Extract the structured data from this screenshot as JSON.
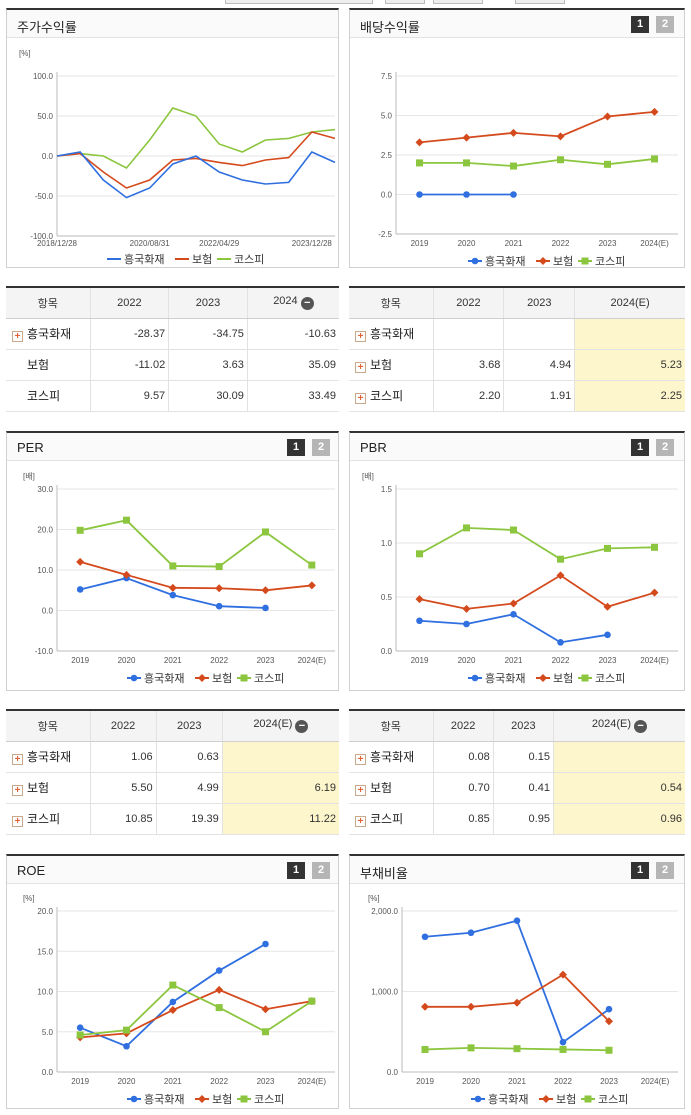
{
  "buttons": {
    "one": "1",
    "two": "2"
  },
  "legend_a": [
    "흥국화재",
    "보험",
    "코스피"
  ],
  "colors": {
    "company": "#2f6fe0",
    "insurance": "#d44a1c",
    "kospi": "#8cc63f"
  },
  "stock": {
    "title": "주가수익률",
    "unit": "[%]",
    "y_ticks": [
      "100.0",
      "50.0",
      "0.0",
      "-50.0",
      "-100.0"
    ],
    "x_ticks": [
      "2018/12/28",
      "2020/08/31",
      "2022/04/29",
      "2023/12/28"
    ]
  },
  "dividend": {
    "title": "배당수익률",
    "y_ticks": [
      "7.5",
      "5.0",
      "2.5",
      "0.0",
      "-2.5"
    ],
    "x_ticks": [
      "2019",
      "2020",
      "2021",
      "2022",
      "2023",
      "2024(E)"
    ]
  },
  "per": {
    "title": "PER",
    "unit": "[배]",
    "y_ticks": [
      "30.0",
      "20.0",
      "10.0",
      "0.0",
      "-10.0"
    ],
    "x_ticks": [
      "2019",
      "2020",
      "2021",
      "2022",
      "2023",
      "2024(E)"
    ]
  },
  "pbr": {
    "title": "PBR",
    "unit": "[배]",
    "y_ticks": [
      "1.5",
      "1.0",
      "0.5",
      "0.0"
    ],
    "x_ticks": [
      "2019",
      "2020",
      "2021",
      "2022",
      "2023",
      "2024(E)"
    ]
  },
  "roe": {
    "title": "ROE",
    "unit": "[%]",
    "y_ticks": [
      "20.0",
      "15.0",
      "10.0",
      "5.0",
      "0.0"
    ],
    "x_ticks": [
      "2019",
      "2020",
      "2021",
      "2022",
      "2023",
      "2024(E)"
    ]
  },
  "debt": {
    "title": "부채비율",
    "unit": "[%]",
    "y_ticks": [
      "2,000.0",
      "1,000.0",
      "0.0"
    ],
    "x_ticks": [
      "2019",
      "2020",
      "2021",
      "2022",
      "2023",
      "2024(E)"
    ]
  },
  "table1": {
    "headers": [
      "항목",
      "2022",
      "2023",
      "2024"
    ],
    "rows": [
      {
        "label": "흥국화재",
        "values": [
          "-28.37",
          "-34.75",
          "-10.63"
        ]
      },
      {
        "label": "보험",
        "values": [
          "-11.02",
          "3.63",
          "35.09"
        ]
      },
      {
        "label": "코스피",
        "values": [
          "9.57",
          "30.09",
          "33.49"
        ]
      }
    ]
  },
  "table2": {
    "headers": [
      "항목",
      "2022",
      "2023",
      "2024(E)"
    ],
    "rows": [
      {
        "label": "흥국화재",
        "values": [
          "",
          "",
          ""
        ]
      },
      {
        "label": "보험",
        "values": [
          "3.68",
          "4.94",
          "5.23"
        ]
      },
      {
        "label": "코스피",
        "values": [
          "2.20",
          "1.91",
          "2.25"
        ]
      }
    ]
  },
  "table3": {
    "headers": [
      "항목",
      "2022",
      "2023",
      "2024(E)"
    ],
    "rows": [
      {
        "label": "흥국화재",
        "values": [
          "1.06",
          "0.63",
          ""
        ]
      },
      {
        "label": "보험",
        "values": [
          "5.50",
          "4.99",
          "6.19"
        ]
      },
      {
        "label": "코스피",
        "values": [
          "10.85",
          "19.39",
          "11.22"
        ]
      }
    ]
  },
  "table4": {
    "headers": [
      "항목",
      "2022",
      "2023",
      "2024(E)"
    ],
    "rows": [
      {
        "label": "흥국화재",
        "values": [
          "0.08",
          "0.15",
          ""
        ]
      },
      {
        "label": "보험",
        "values": [
          "0.70",
          "0.41",
          "0.54"
        ]
      },
      {
        "label": "코스피",
        "values": [
          "0.85",
          "0.95",
          "0.96"
        ]
      }
    ]
  },
  "chart_data": [
    {
      "type": "line",
      "title": "주가수익률",
      "ylim": [
        -100,
        100
      ],
      "x": [
        "2018/12/28",
        "2019/06",
        "2019/12",
        "2020/03",
        "2020/08/31",
        "2021/03",
        "2021/09",
        "2022/04/29",
        "2022/10",
        "2023/04",
        "2023/09",
        "2023/12/28",
        "2024/03"
      ],
      "series": [
        {
          "name": "흥국화재",
          "values": [
            0,
            5,
            -30,
            -52,
            -40,
            -10,
            0,
            -20,
            -30,
            -35,
            -33,
            5,
            -8
          ]
        },
        {
          "name": "보험",
          "values": [
            0,
            3,
            -20,
            -40,
            -30,
            -5,
            -3,
            -8,
            -12,
            -5,
            -2,
            30,
            22
          ]
        },
        {
          "name": "코스피",
          "values": [
            0,
            3,
            0,
            -15,
            20,
            60,
            50,
            15,
            5,
            20,
            22,
            30,
            33
          ]
        }
      ]
    },
    {
      "type": "line",
      "title": "배당수익률",
      "ylim": [
        -2.5,
        7.5
      ],
      "x": [
        "2019",
        "2020",
        "2021",
        "2022",
        "2023",
        "2024(E)"
      ],
      "series": [
        {
          "name": "흥국화재",
          "values": [
            0.0,
            0.0,
            0.0,
            null,
            null,
            null
          ]
        },
        {
          "name": "보험",
          "values": [
            3.3,
            3.6,
            3.9,
            3.68,
            4.94,
            5.23
          ]
        },
        {
          "name": "코스피",
          "values": [
            2.0,
            2.0,
            1.8,
            2.2,
            1.91,
            2.25
          ]
        }
      ]
    },
    {
      "type": "line",
      "title": "PER",
      "ylim": [
        -10,
        30
      ],
      "x": [
        "2019",
        "2020",
        "2021",
        "2022",
        "2023",
        "2024(E)"
      ],
      "series": [
        {
          "name": "흥국화재",
          "values": [
            5.2,
            8.0,
            3.8,
            1.06,
            0.63,
            null
          ]
        },
        {
          "name": "보험",
          "values": [
            12.0,
            8.8,
            5.6,
            5.5,
            4.99,
            6.19
          ]
        },
        {
          "name": "코스피",
          "values": [
            19.8,
            22.3,
            11.0,
            10.85,
            19.39,
            11.22
          ]
        }
      ]
    },
    {
      "type": "line",
      "title": "PBR",
      "ylim": [
        0,
        1.5
      ],
      "x": [
        "2019",
        "2020",
        "2021",
        "2022",
        "2023",
        "2024(E)"
      ],
      "series": [
        {
          "name": "흥국화재",
          "values": [
            0.28,
            0.25,
            0.34,
            0.08,
            0.15,
            null
          ]
        },
        {
          "name": "보험",
          "values": [
            0.48,
            0.39,
            0.44,
            0.7,
            0.41,
            0.54
          ]
        },
        {
          "name": "코스피",
          "values": [
            0.9,
            1.14,
            1.12,
            0.85,
            0.95,
            0.96
          ]
        }
      ]
    },
    {
      "type": "line",
      "title": "ROE",
      "ylim": [
        0,
        20
      ],
      "x": [
        "2019",
        "2020",
        "2021",
        "2022",
        "2023",
        "2024(E)"
      ],
      "series": [
        {
          "name": "흥국화재",
          "values": [
            5.5,
            3.2,
            8.7,
            12.6,
            15.9,
            null
          ]
        },
        {
          "name": "보험",
          "values": [
            4.3,
            4.8,
            7.7,
            10.2,
            7.8,
            8.8
          ]
        },
        {
          "name": "코스피",
          "values": [
            4.6,
            5.2,
            10.8,
            8.0,
            5.0,
            8.8
          ]
        }
      ]
    },
    {
      "type": "line",
      "title": "부채비율",
      "ylim": [
        0,
        2000
      ],
      "x": [
        "2019",
        "2020",
        "2021",
        "2022",
        "2023",
        "2024(E)"
      ],
      "series": [
        {
          "name": "흥국화재",
          "values": [
            1680,
            1730,
            1880,
            370,
            780,
            null
          ]
        },
        {
          "name": "보험",
          "values": [
            810,
            810,
            860,
            1210,
            630,
            null
          ]
        },
        {
          "name": "코스피",
          "values": [
            280,
            300,
            290,
            280,
            270,
            null
          ]
        }
      ]
    }
  ]
}
